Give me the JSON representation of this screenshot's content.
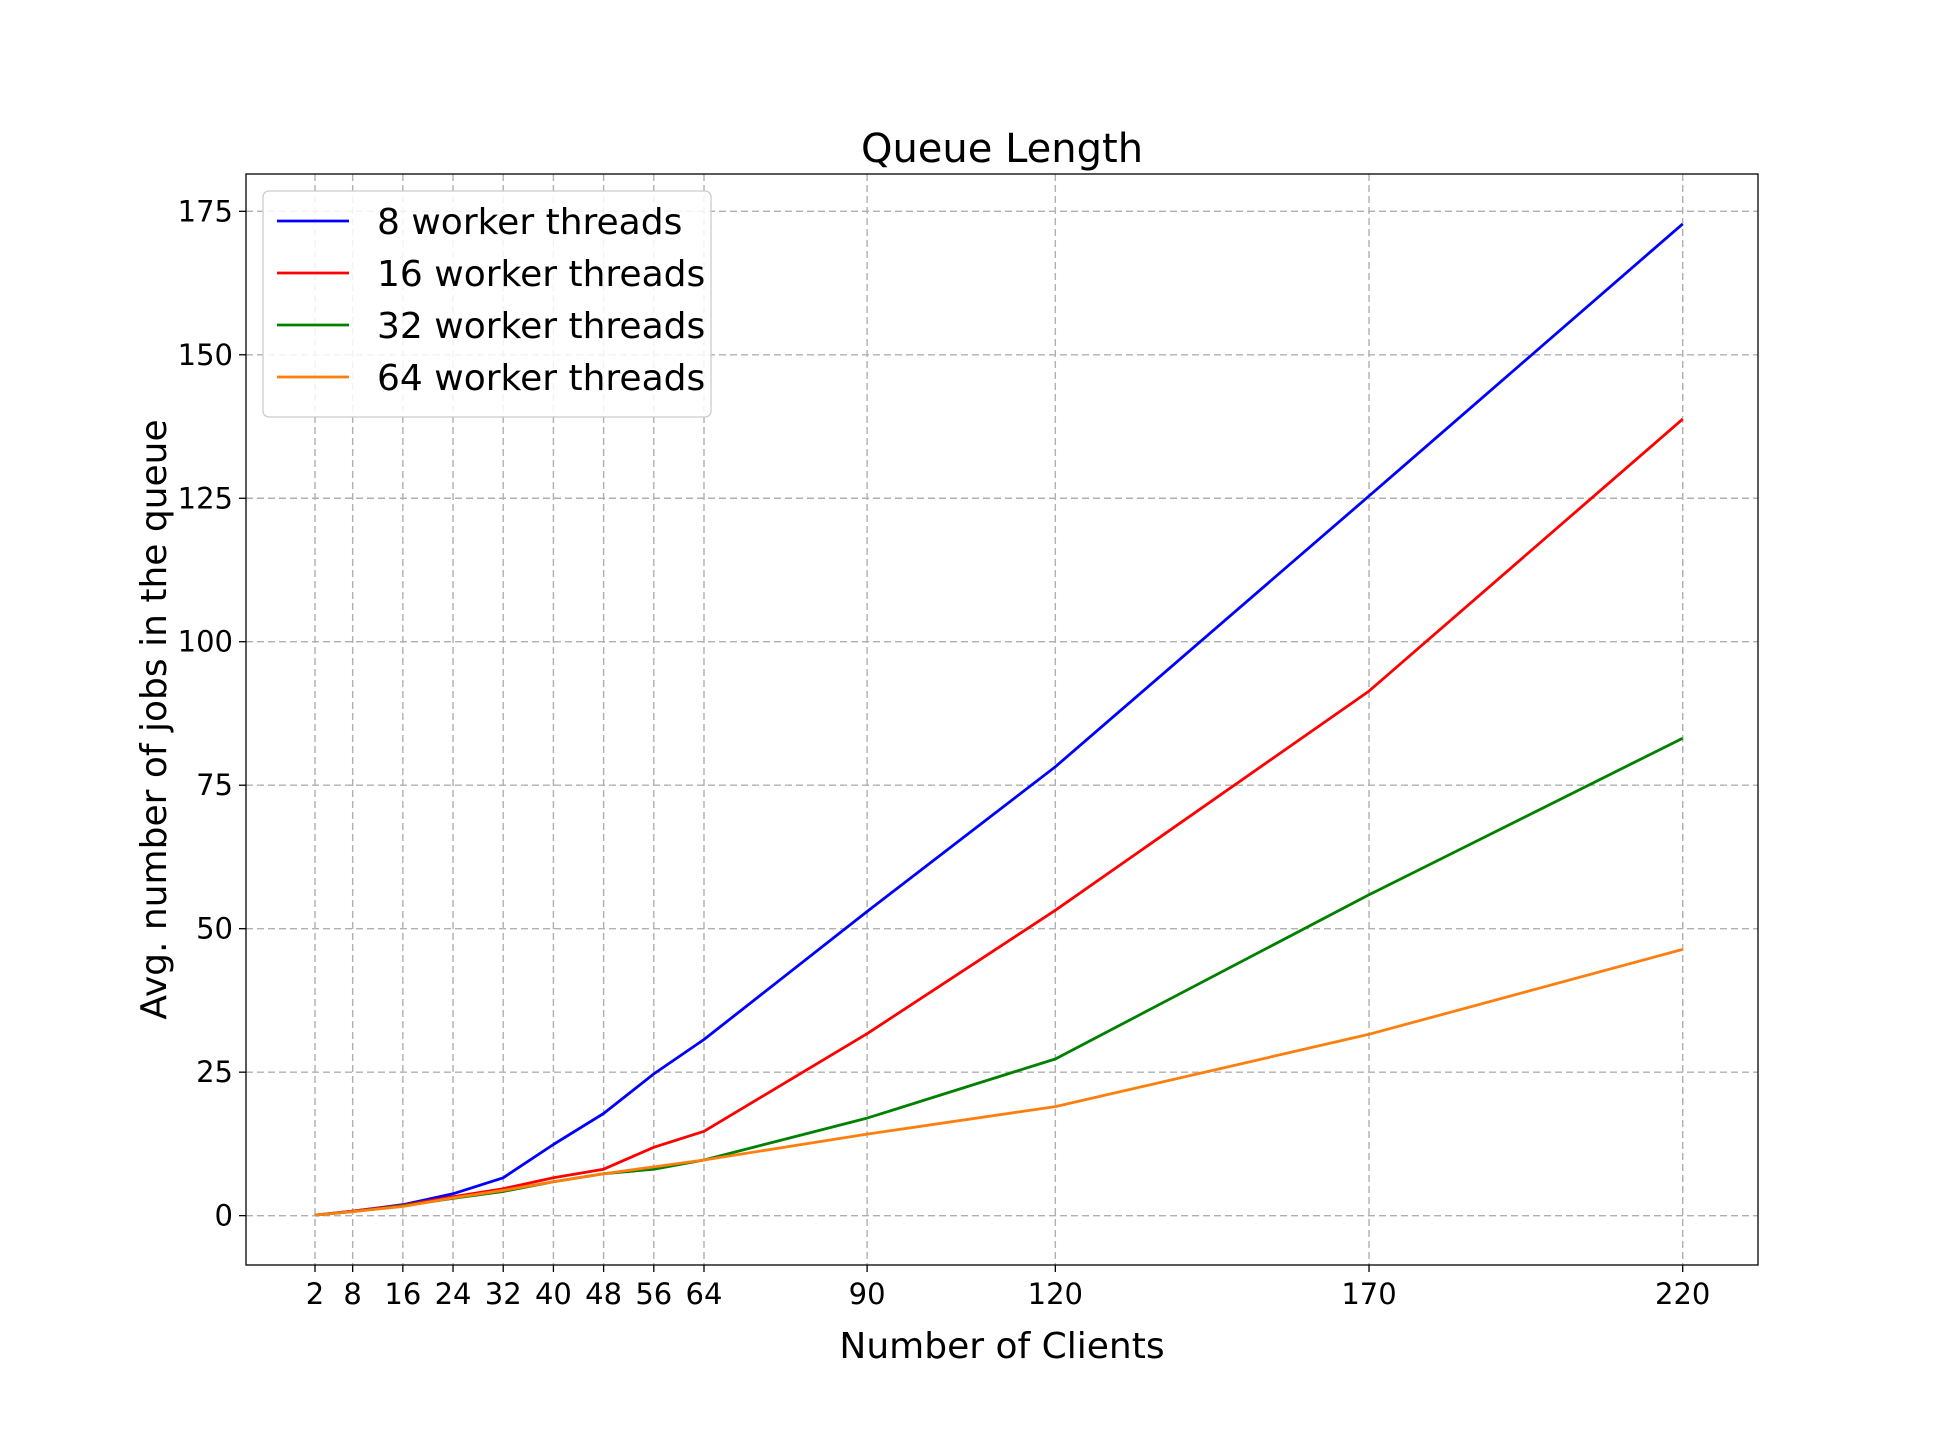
{
  "chart_data": {
    "type": "line",
    "title": "Queue Length",
    "xlabel": "Number of Clients",
    "ylabel": "Avg. number of jobs in the queue",
    "x": [
      2,
      8,
      16,
      24,
      32,
      40,
      48,
      56,
      64,
      90,
      120,
      170,
      220
    ],
    "x_tick_labels": [
      "2",
      "8",
      "16",
      "24",
      "32",
      "40",
      "48",
      "56",
      "64",
      "90",
      "120",
      "170",
      "220"
    ],
    "xlim": [
      -9,
      232
    ],
    "ylim": [
      -8.6,
      181.5
    ],
    "y_ticks": [
      0,
      25,
      50,
      75,
      100,
      125,
      150,
      175
    ],
    "y_tick_labels": [
      "0",
      "25",
      "50",
      "75",
      "100",
      "125",
      "150",
      "175"
    ],
    "grid": true,
    "legend_position": "top-left",
    "series": [
      {
        "name": "8 worker threads",
        "color": "#0000ff",
        "values": [
          0.1,
          0.8,
          1.9,
          3.8,
          6.6,
          12.4,
          17.8,
          24.7,
          30.7,
          53.0,
          78.2,
          125.4,
          172.8
        ]
      },
      {
        "name": "16 worker threads",
        "color": "#ff0000",
        "values": [
          0.1,
          0.8,
          1.8,
          3.3,
          4.7,
          6.6,
          8.1,
          11.9,
          14.7,
          31.7,
          53.2,
          91.4,
          138.8
        ]
      },
      {
        "name": "32 worker threads",
        "color": "#008000",
        "values": [
          0.1,
          0.7,
          1.7,
          3.0,
          4.2,
          5.9,
          7.3,
          8.1,
          9.7,
          17.0,
          27.3,
          55.9,
          83.2
        ]
      },
      {
        "name": "64 worker threads",
        "color": "#ff7f0e",
        "values": [
          0.1,
          0.7,
          1.6,
          3.1,
          4.4,
          5.9,
          7.3,
          8.5,
          9.7,
          14.2,
          19.0,
          31.6,
          46.4
        ]
      }
    ]
  }
}
